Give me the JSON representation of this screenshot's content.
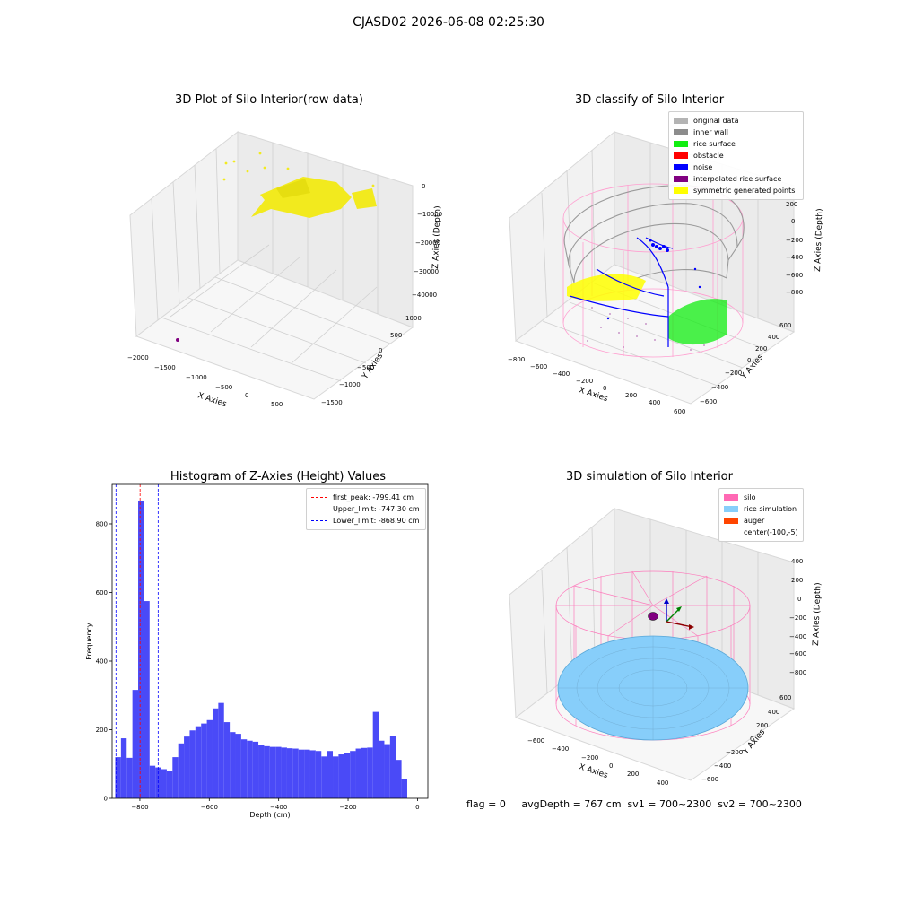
{
  "figure_title": "CJASD02 2026-06-08 02:25:30",
  "footer_text": "flag = 0     avgDepth = 767 cm  sv1 = 700~2300  sv2 = 700~2300",
  "colors": {
    "raw_points": "#f2ea1e",
    "inner_wall": "#8c8c8c",
    "rice_surface": "#10ee10",
    "noise": "#0000ff",
    "interpolated": "#800080",
    "symmetric": "#ffff00",
    "silo": "#ff69b4",
    "rice_sim": "#87cefa",
    "auger": "#ff4500",
    "hist_bar": "#4a4af7"
  },
  "chart_data": [
    {
      "type": "scatter",
      "title": "3D Plot of Silo Interior(row data)",
      "xlabel": "X Axies",
      "ylabel": "Y Axies",
      "zlabel": "Z Axies (Depth)",
      "x_ticks": [
        "−2000",
        "−1500",
        "−1000",
        "−500",
        "0",
        "500"
      ],
      "y_ticks": [
        "1000",
        "500",
        "0",
        "−500",
        "−1000",
        "−1500"
      ],
      "z_ticks": [
        "0",
        "−10000",
        "−20000",
        "−30000",
        "−40000"
      ],
      "xlim": [
        -2000,
        800
      ],
      "ylim": [
        -1500,
        1000
      ],
      "zlim": [
        -45000,
        0
      ]
    },
    {
      "type": "scatter",
      "title": "3D classify of Silo Interior",
      "xlabel": "X Axies",
      "ylabel": "Y Axies",
      "zlabel": "Z Axies (Depth)",
      "x_ticks": [
        "−800",
        "−600",
        "−400",
        "−200",
        "0",
        "200",
        "400",
        "600"
      ],
      "y_ticks": [
        "600",
        "400",
        "200",
        "0",
        "−200",
        "−400",
        "−600"
      ],
      "z_ticks": [
        "200",
        "0",
        "−200",
        "−400",
        "−600",
        "−800"
      ],
      "xlim": [
        -800,
        600
      ],
      "ylim": [
        -600,
        600
      ],
      "zlim": [
        -900,
        300
      ],
      "legend": [
        {
          "label": "original data",
          "color": "#b4b4b4"
        },
        {
          "label": "inner wall",
          "color": "#8c8c8c"
        },
        {
          "label": "rice surface",
          "color": "#10ee10"
        },
        {
          "label": "obstacle",
          "color": "#ff0000"
        },
        {
          "label": "noise",
          "color": "#0000ff"
        },
        {
          "label": "interpolated rice surface",
          "color": "#800080"
        },
        {
          "label": "symmetric generated points",
          "color": "#ffff00"
        }
      ]
    },
    {
      "type": "bar",
      "title": "Histogram of Z-Axies (Height) Values",
      "xlabel": "Depth (cm)",
      "ylabel": "Frequency",
      "xlim": [
        -880,
        30
      ],
      "ylim": [
        0,
        915
      ],
      "x_ticks": [
        -800,
        -600,
        -400,
        -200,
        0
      ],
      "x_tick_labels": [
        "−800",
        "−600",
        "−400",
        "−200",
        "0"
      ],
      "y_ticks": [
        0,
        200,
        400,
        600,
        800
      ],
      "bin_width": 16.5,
      "bin_start": -871,
      "values": [
        120,
        175,
        118,
        316,
        868,
        575,
        95,
        90,
        85,
        80,
        120,
        160,
        180,
        198,
        210,
        218,
        228,
        262,
        278,
        222,
        193,
        188,
        172,
        168,
        165,
        155,
        152,
        150,
        150,
        148,
        146,
        145,
        142,
        142,
        140,
        138,
        122,
        138,
        122,
        128,
        132,
        138,
        145,
        147,
        148,
        252,
        168,
        158,
        182,
        112,
        56
      ],
      "vlines": [
        {
          "label": "first_peak: -799.41 cm",
          "x": -799.41,
          "color": "#ff0000"
        },
        {
          "label": "Upper_limit: -747.30 cm",
          "x": -747.3,
          "color": "#0000ff"
        },
        {
          "label": "Lower_limit: -868.90 cm",
          "x": -868.9,
          "color": "#0000ff"
        }
      ]
    },
    {
      "type": "scatter",
      "title": "3D simulation of Silo Interior",
      "xlabel": "X Axies",
      "ylabel": "Y Axies",
      "zlabel": "Z Axies (Depth)",
      "x_ticks": [
        "−600",
        "−400",
        "−200",
        "0",
        "200",
        "400"
      ],
      "y_ticks": [
        "600",
        "400",
        "200",
        "0",
        "−200",
        "−400",
        "−600"
      ],
      "z_ticks": [
        "400",
        "200",
        "0",
        "−200",
        "−400",
        "−600",
        "−800"
      ],
      "xlim": [
        -700,
        500
      ],
      "ylim": [
        -700,
        700
      ],
      "zlim": [
        -900,
        450
      ],
      "legend": [
        {
          "label": "silo",
          "color": "#ff69b4"
        },
        {
          "label": "rice simulation",
          "color": "#87cefa"
        },
        {
          "label": "auger",
          "color": "#ff4500"
        },
        {
          "label": "center(-100,-5)",
          "color": ""
        }
      ]
    }
  ]
}
